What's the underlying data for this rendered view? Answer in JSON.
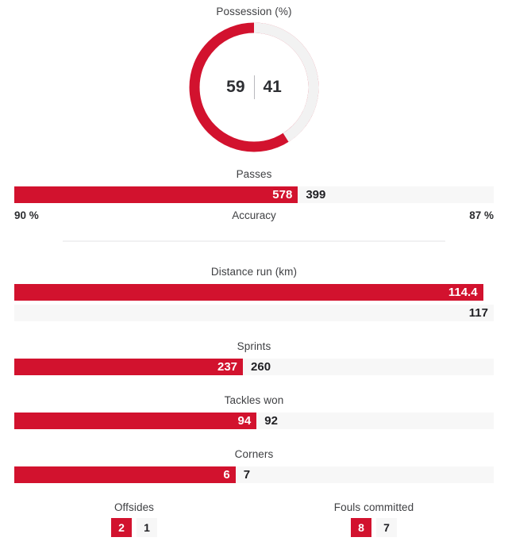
{
  "colors": {
    "home_bar": "#d2122e",
    "away_track": "#f7f7f7",
    "donut_track": "#f2f2f2",
    "title_text": "#3f4043",
    "value_text": "#1f1f23"
  },
  "chart_data": [
    {
      "key": "possession",
      "type": "pie",
      "title": "Possession (%)",
      "home": 59,
      "away": 41,
      "home_label": "59",
      "away_label": "41",
      "legend_position": "none",
      "note": "red arc sweeps counter-clockwise from 12 o'clock"
    },
    {
      "key": "passes",
      "type": "bar",
      "layout": "inline-share",
      "title": "Passes",
      "home": 578,
      "away": 399,
      "home_label": "578",
      "away_label": "399",
      "footer": {
        "home_accuracy": "90 %",
        "label": "Accuracy",
        "away_accuracy": "87 %"
      }
    },
    {
      "key": "distance",
      "type": "bar",
      "layout": "stacked-max",
      "title": "Distance run (km)",
      "home": 114.4,
      "away": 117,
      "home_label": "114.4",
      "away_label": "117"
    },
    {
      "key": "sprints",
      "type": "bar",
      "layout": "inline-share",
      "title": "Sprints",
      "home": 237,
      "away": 260,
      "home_label": "237",
      "away_label": "260"
    },
    {
      "key": "tackles_won",
      "type": "bar",
      "layout": "inline-share",
      "title": "Tackles won",
      "home": 94,
      "away": 92,
      "home_label": "94",
      "away_label": "92"
    },
    {
      "key": "corners",
      "type": "bar",
      "layout": "inline-share",
      "title": "Corners",
      "home": 6,
      "away": 7,
      "home_label": "6",
      "away_label": "7"
    },
    {
      "key": "offsides",
      "type": "badge",
      "title": "Offsides",
      "home": 2,
      "away": 1,
      "home_label": "2",
      "away_label": "1"
    },
    {
      "key": "fouls_committed",
      "type": "badge",
      "title": "Fouls committed",
      "home": 8,
      "away": 7,
      "home_label": "8",
      "away_label": "7"
    }
  ]
}
